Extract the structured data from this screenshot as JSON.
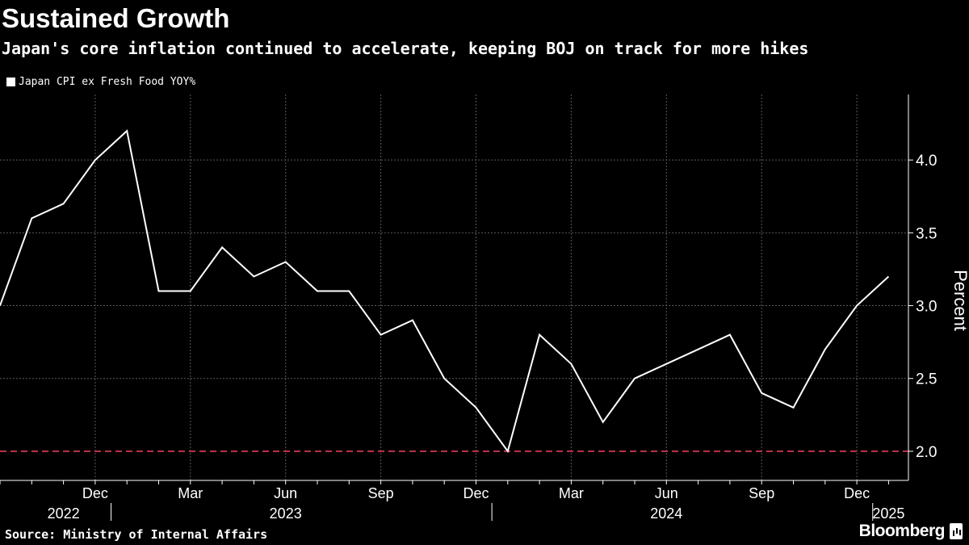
{
  "header": {
    "title": "Sustained Growth",
    "subtitle": "Japan's core inflation continued to accelerate, keeping BOJ on track for more hikes"
  },
  "footer": {
    "source": "Source: Ministry of Internal Affairs",
    "brand": "Bloomberg"
  },
  "colors": {
    "background": "#000000",
    "line": "#ffffff",
    "grid": "#5a5a5a",
    "target_line": "#c0324a",
    "text": "#ffffff"
  },
  "chart_data": {
    "type": "line",
    "title": "Sustained Growth",
    "subtitle": "Japan's core inflation continued to accelerate, keeping BOJ on track for more hikes",
    "ylabel": "Percent",
    "xlabel": "",
    "legend_position": "top-left",
    "grid": true,
    "y_axis_side": "right",
    "ylim": [
      1.8,
      4.45
    ],
    "y_ticks": [
      2.0,
      2.5,
      3.0,
      3.5,
      4.0
    ],
    "y_tick_labels": [
      "2.0",
      "2.5",
      "3.0",
      "3.5",
      "4.0"
    ],
    "reference_line": {
      "value": 2.0,
      "style": "dashed"
    },
    "x_month_ticks": [
      {
        "date": "2022-12",
        "label": "Dec"
      },
      {
        "date": "2023-03",
        "label": "Mar"
      },
      {
        "date": "2023-06",
        "label": "Jun"
      },
      {
        "date": "2023-09",
        "label": "Sep"
      },
      {
        "date": "2023-12",
        "label": "Dec"
      },
      {
        "date": "2024-03",
        "label": "Mar"
      },
      {
        "date": "2024-06",
        "label": "Jun"
      },
      {
        "date": "2024-09",
        "label": "Sep"
      },
      {
        "date": "2024-12",
        "label": "Dec"
      }
    ],
    "x_year_labels": [
      {
        "date": "2022-11",
        "label": "2022"
      },
      {
        "date": "2023-06",
        "label": "2023"
      },
      {
        "date": "2024-06",
        "label": "2024"
      },
      {
        "date": "2025-01",
        "label": "2025"
      }
    ],
    "year_dividers": [
      "2023-01",
      "2024-01",
      "2025-01"
    ],
    "series": [
      {
        "name": "Japan CPI ex Fresh Food YOY%",
        "color": "#ffffff",
        "x": [
          "2022-09",
          "2022-10",
          "2022-11",
          "2022-12",
          "2023-01",
          "2023-02",
          "2023-03",
          "2023-04",
          "2023-05",
          "2023-06",
          "2023-07",
          "2023-08",
          "2023-09",
          "2023-10",
          "2023-11",
          "2023-12",
          "2024-01",
          "2024-02",
          "2024-03",
          "2024-04",
          "2024-05",
          "2024-06",
          "2024-07",
          "2024-08",
          "2024-09",
          "2024-10",
          "2024-11",
          "2024-12",
          "2025-01"
        ],
        "values": [
          3.0,
          3.6,
          3.7,
          4.0,
          4.2,
          3.1,
          3.1,
          3.4,
          3.2,
          3.3,
          3.1,
          3.1,
          2.8,
          2.9,
          2.5,
          2.3,
          2.0,
          2.8,
          2.6,
          2.2,
          2.5,
          2.6,
          2.7,
          2.8,
          2.4,
          2.3,
          2.7,
          3.0,
          3.2
        ]
      }
    ]
  }
}
